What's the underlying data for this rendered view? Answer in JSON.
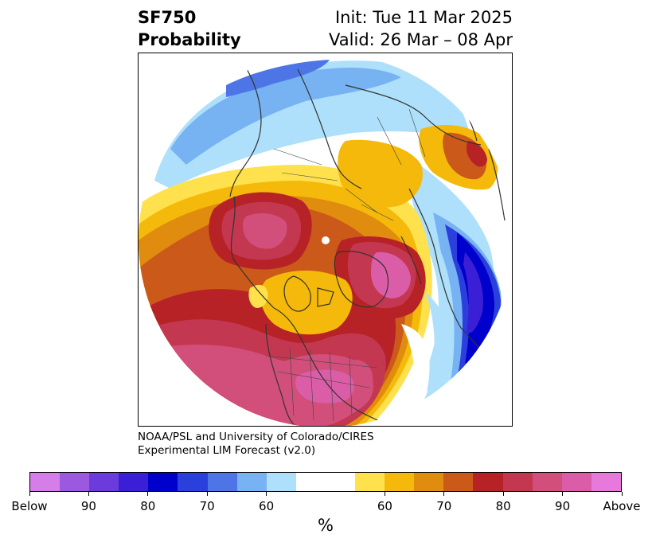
{
  "title": {
    "variable": "SF750",
    "kind": "Probability",
    "init": "Init: Tue 11 Mar 2025",
    "valid": "Valid: 26 Mar – 08 Apr"
  },
  "credit": {
    "line1": "NOAA/PSL and University of Colorado/CIRES",
    "line2": "Experimental LIM Forecast (v2.0)"
  },
  "colorbar": {
    "unit": "%",
    "colors": [
      "#d57de8",
      "#9b59e0",
      "#6b3bdc",
      "#3a1fd6",
      "#0000cc",
      "#2b3fdc",
      "#4e75e6",
      "#77b2f2",
      "#aee0fb",
      "#ffffff",
      "#ffffff",
      "#ffe14d",
      "#f4b90a",
      "#e08c0e",
      "#cb5a1a",
      "#b72227",
      "#c33751",
      "#d14f7a",
      "#db5da8",
      "#e679db"
    ],
    "labels": [
      "Below",
      "90",
      "80",
      "70",
      "60",
      "60",
      "70",
      "80",
      "90",
      "Above"
    ]
  },
  "map": {
    "projection": "north-polar-stereographic",
    "colors": {
      "deep_blue": "#0000cc",
      "blue": "#2b3fdc",
      "mid_blue": "#4e75e6",
      "light_blue": "#77b2f2",
      "pale_blue": "#aee0fb",
      "yellow": "#ffe14d",
      "gold": "#f4b90a",
      "orange": "#e08c0e",
      "rust": "#cb5a1a",
      "red": "#b72227",
      "crimson": "#c33751",
      "rose": "#d14f7a",
      "pink": "#db5da8",
      "coastline": "#333333"
    }
  }
}
